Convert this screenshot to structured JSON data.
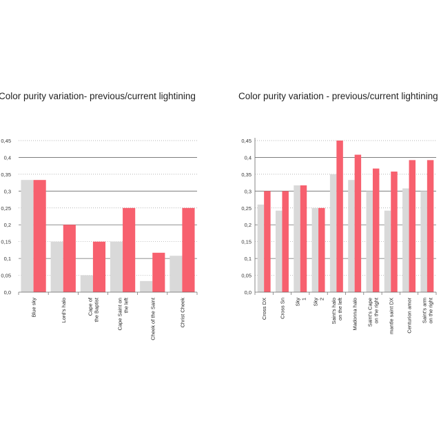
{
  "chart_data": [
    {
      "type": "bar",
      "title": "Color purity variation- previous/current lightining",
      "xlabel": "",
      "ylabel": "",
      "ylim": [
        0,
        0.45
      ],
      "y_ticks": [
        "0,0",
        "0,05",
        "0,1",
        "0,15",
        "0,2",
        "0,25",
        "0,3",
        "0,35",
        "0,4",
        "0,45"
      ],
      "categories": [
        [
          "Blue sky"
        ],
        [
          "Lord's halo"
        ],
        [
          "Cape of",
          "the Baptist"
        ],
        [
          "Cape Saint on",
          "the left"
        ],
        [
          "Cheek of the Saint"
        ],
        [
          "Christ Cheek"
        ]
      ],
      "series": [
        {
          "values": [
            0.333,
            0.15,
            0.05,
            0.15,
            0.033,
            0.108
          ]
        },
        {
          "values": [
            0.333,
            0.2,
            0.15,
            0.25,
            0.117,
            0.25
          ]
        }
      ],
      "colors": [
        "#d9d9d9",
        "#f7606e"
      ],
      "grid": "major solid, minor dotted",
      "legend": "none"
    },
    {
      "type": "bar",
      "title": "Color purity variation - previous/current lightining",
      "xlabel": "",
      "ylabel": "",
      "ylim": [
        0,
        0.45
      ],
      "y_ticks": [
        "0,0",
        "0,05",
        "0,1",
        "0,15",
        "0,2",
        "0,25",
        "0,3",
        "0,35",
        "0,4",
        "0,45"
      ],
      "categories": [
        [
          "Cross DX"
        ],
        [
          "Cross Sn"
        ],
        [
          "Sky",
          "1"
        ],
        [
          "Sky",
          "2"
        ],
        [
          "Saint's halo",
          "on the left"
        ],
        [
          "Madonna halo"
        ],
        [
          "Saint's Cape",
          "on the right"
        ],
        [
          "mantle saint DX"
        ],
        [
          "Centurion amor"
        ],
        [
          "Saint's arm",
          "on the right"
        ]
      ],
      "series": [
        {
          "values": [
            0.26,
            0.242,
            0.317,
            0.25,
            0.35,
            0.333,
            0.3,
            0.242,
            0.308,
            0.3
          ]
        },
        {
          "values": [
            0.3,
            0.3,
            0.317,
            0.25,
            0.45,
            0.408,
            0.367,
            0.358,
            0.392,
            0.392
          ]
        }
      ],
      "colors": [
        "#d9d9d9",
        "#f7606e"
      ],
      "grid": "major solid, minor dotted",
      "legend": "none"
    }
  ]
}
